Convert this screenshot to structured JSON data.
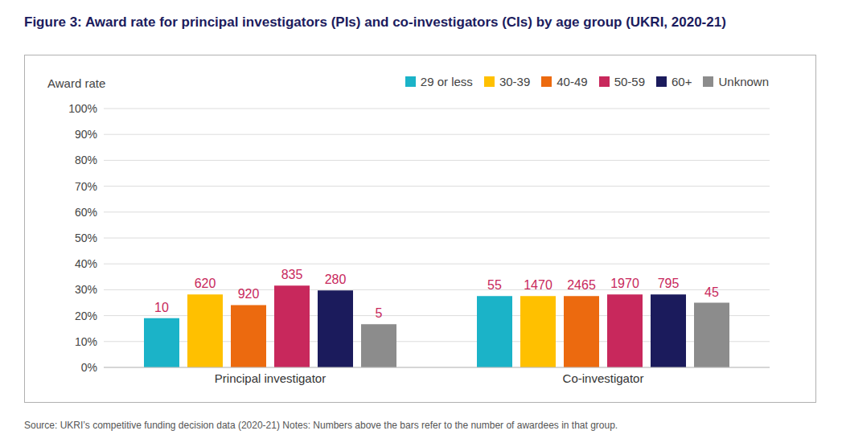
{
  "chart_data": {
    "type": "bar",
    "title": "Figure 3: Award rate for principal investigators (PIs) and co-investigators (CIs) by age group (UKRI, 2020-21)",
    "y_label": "Award rate",
    "source": "Source: UKRI’s competitive funding decision data (2020-21) Notes: Numbers above the bars refer to the number of awardees in that group.",
    "categories": [
      "Principal investigator",
      "Co-investigator"
    ],
    "series": [
      {
        "name": "29 or less",
        "color": "#1bb3c8",
        "values": [
          19,
          27.6
        ],
        "awardees": [
          10,
          55
        ]
      },
      {
        "name": "30-39",
        "color": "#ffc000",
        "values": [
          28.2,
          27.6
        ],
        "awardees": [
          620,
          1470
        ]
      },
      {
        "name": "40-49",
        "color": "#ec6a0f",
        "values": [
          24.1,
          27.6
        ],
        "awardees": [
          920,
          2465
        ]
      },
      {
        "name": "50-59",
        "color": "#c8285c",
        "values": [
          31.6,
          28.2
        ],
        "awardees": [
          835,
          1970
        ]
      },
      {
        "name": "60+",
        "color": "#1b1b5c",
        "values": [
          29.7,
          28.2
        ],
        "awardees": [
          280,
          795
        ]
      },
      {
        "name": "Unknown",
        "color": "#8c8c8c",
        "values": [
          16.7,
          25
        ],
        "awardees": [
          5,
          45
        ]
      }
    ],
    "ylim": [
      0,
      100
    ],
    "yticks": [
      {
        "value": 0,
        "label": "0%"
      },
      {
        "value": 10,
        "label": "10%"
      },
      {
        "value": 20,
        "label": "20%"
      },
      {
        "value": 30,
        "label": "30%"
      },
      {
        "value": 40,
        "label": "40%"
      },
      {
        "value": 50,
        "label": "50%"
      },
      {
        "value": 60,
        "label": "60%"
      },
      {
        "value": 70,
        "label": "70%"
      },
      {
        "value": 80,
        "label": "80%"
      },
      {
        "value": 90,
        "label": "90%"
      },
      {
        "value": 100,
        "label": "100%"
      }
    ],
    "grid": true,
    "legend": "top-right"
  }
}
